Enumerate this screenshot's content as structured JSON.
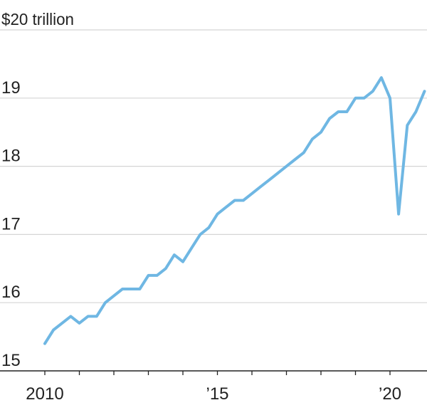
{
  "chart_data": {
    "type": "line",
    "y_tick_labels": [
      "15",
      "16",
      "17",
      "18",
      "19",
      "$20 trillion"
    ],
    "y_ticks": [
      15,
      16,
      17,
      18,
      19,
      20
    ],
    "x_tick_labels": [
      "2010",
      "’15",
      "’20"
    ],
    "x_tick_label_years": [
      2010,
      2015,
      2020
    ],
    "x_minor_tick_years": [
      2010,
      2011,
      2012,
      2013,
      2014,
      2015,
      2016,
      2017,
      2018,
      2019,
      2020
    ],
    "ylim": [
      15,
      20
    ],
    "xlim": [
      2010,
      2021
    ],
    "grid": true,
    "colors": {
      "line": "#6fb7e3",
      "grid": "#d5d5d5",
      "axis": "#222222",
      "text": "#222222"
    },
    "series": [
      {
        "x": [
          2010.0,
          2010.25,
          2010.5,
          2010.75,
          2011.0,
          2011.25,
          2011.5,
          2011.75,
          2012.0,
          2012.25,
          2012.5,
          2012.75,
          2013.0,
          2013.25,
          2013.5,
          2013.75,
          2014.0,
          2014.25,
          2014.5,
          2014.75,
          2015.0,
          2015.25,
          2015.5,
          2015.75,
          2016.0,
          2016.25,
          2016.5,
          2016.75,
          2017.0,
          2017.25,
          2017.5,
          2017.75,
          2018.0,
          2018.25,
          2018.5,
          2018.75,
          2019.0,
          2019.25,
          2019.5,
          2019.75,
          2020.0,
          2020.25,
          2020.5,
          2020.75,
          2021.0
        ],
        "values": [
          15.4,
          15.6,
          15.7,
          15.8,
          15.7,
          15.8,
          15.8,
          16.0,
          16.1,
          16.2,
          16.2,
          16.2,
          16.4,
          16.4,
          16.5,
          16.7,
          16.6,
          16.8,
          17.0,
          17.1,
          17.3,
          17.4,
          17.5,
          17.5,
          17.6,
          17.7,
          17.8,
          17.9,
          18.0,
          18.1,
          18.2,
          18.4,
          18.5,
          18.7,
          18.8,
          18.8,
          19.0,
          19.0,
          19.1,
          19.3,
          19.0,
          17.3,
          18.6,
          18.8,
          19.1
        ]
      }
    ]
  }
}
